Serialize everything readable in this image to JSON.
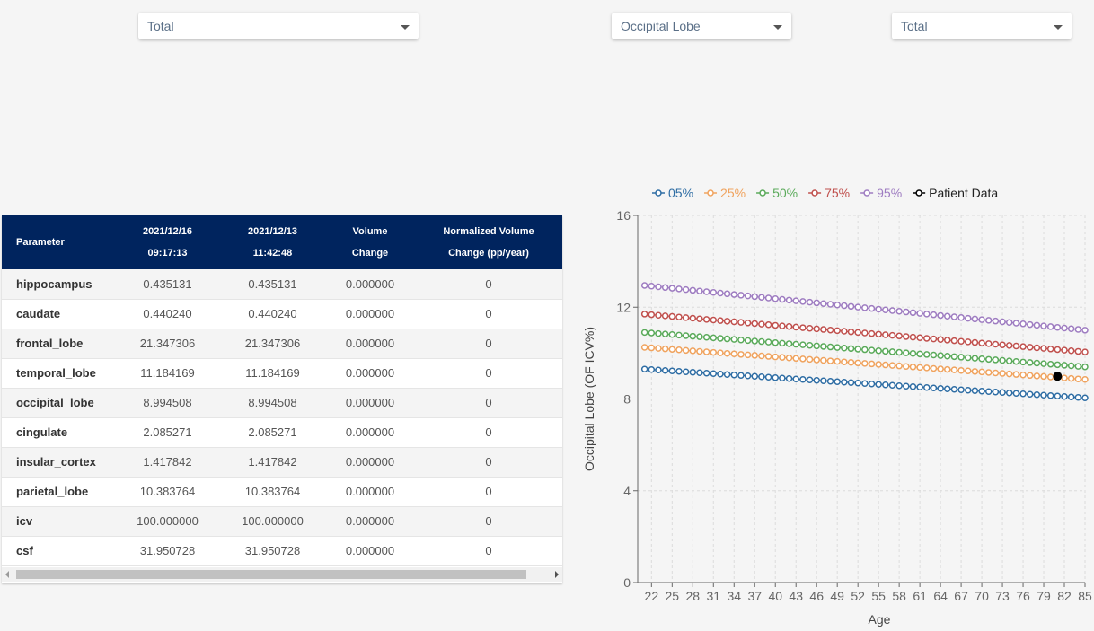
{
  "dropdowns": [
    {
      "value": "Total"
    },
    {
      "value": "Occipital Lobe"
    },
    {
      "value": "Total"
    }
  ],
  "table": {
    "headers": [
      [
        "Parameter"
      ],
      [
        "2021/12/16",
        "09:17:13"
      ],
      [
        "2021/12/13",
        "11:42:48"
      ],
      [
        "Volume",
        "Change"
      ],
      [
        "Normalized Volume",
        "Change (pp/year)"
      ]
    ],
    "rows": [
      [
        "hippocampus",
        "0.435131",
        "0.435131",
        "0.000000",
        "0"
      ],
      [
        "caudate",
        "0.440240",
        "0.440240",
        "0.000000",
        "0"
      ],
      [
        "frontal_lobe",
        "21.347306",
        "21.347306",
        "0.000000",
        "0"
      ],
      [
        "temporal_lobe",
        "11.184169",
        "11.184169",
        "0.000000",
        "0"
      ],
      [
        "occipital_lobe",
        "8.994508",
        "8.994508",
        "0.000000",
        "0"
      ],
      [
        "cingulate",
        "2.085271",
        "2.085271",
        "0.000000",
        "0"
      ],
      [
        "insular_cortex",
        "1.417842",
        "1.417842",
        "0.000000",
        "0"
      ],
      [
        "parietal_lobe",
        "10.383764",
        "10.383764",
        "0.000000",
        "0"
      ],
      [
        "icv",
        "100.000000",
        "100.000000",
        "0.000000",
        "0"
      ],
      [
        "csf",
        "31.950728",
        "31.950728",
        "0.000000",
        "0"
      ]
    ]
  },
  "chart_data": {
    "type": "line",
    "xlabel": "Age",
    "ylabel": "Occipital Lobe (OF ICV%)",
    "xlim": [
      20,
      85
    ],
    "ylim": [
      0,
      16
    ],
    "xticks": [
      22,
      25,
      28,
      31,
      34,
      37,
      40,
      43,
      46,
      49,
      52,
      55,
      58,
      61,
      64,
      67,
      70,
      73,
      76,
      79,
      82,
      85
    ],
    "yticks": [
      0,
      4,
      8,
      12,
      16
    ],
    "grid": true,
    "legend_position": "top",
    "percentile_series": [
      {
        "name": "05%",
        "color": "#2e6da4",
        "start": 9.3,
        "end": 8.05
      },
      {
        "name": "25%",
        "color": "#f0a35e",
        "start": 10.25,
        "end": 8.85
      },
      {
        "name": "50%",
        "color": "#5aaa5a",
        "start": 10.9,
        "end": 9.4
      },
      {
        "name": "75%",
        "color": "#c0504d",
        "start": 11.7,
        "end": 10.05
      },
      {
        "name": "95%",
        "color": "#9e7cc1",
        "start": 12.95,
        "end": 11.0
      }
    ],
    "patient": {
      "name": "Patient Data",
      "color": "#000000",
      "points": [
        {
          "x": 81,
          "y": 8.99
        }
      ]
    }
  }
}
